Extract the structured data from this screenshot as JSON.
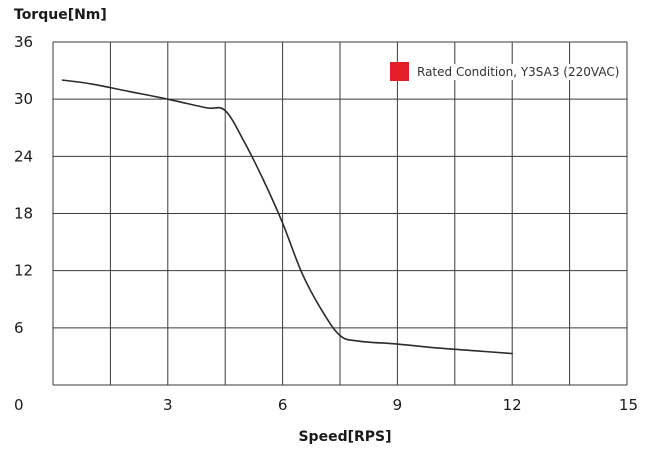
{
  "chart_data": {
    "type": "line",
    "title": "",
    "xlabel": "Speed[RPS]",
    "ylabel": "Torque[Nm]",
    "xlim": [
      0,
      15
    ],
    "ylim": [
      0,
      36
    ],
    "x_ticks": [
      0,
      3,
      6,
      9,
      12,
      15
    ],
    "y_ticks": [
      6,
      12,
      18,
      24,
      30,
      36
    ],
    "grid": true,
    "legend_position": "top-right",
    "series": [
      {
        "name": "Rated Condition, Y3SA3 (220VAC)",
        "color": "#2b2b2b",
        "marker_color": "#e21e26",
        "x": [
          0.25,
          1.0,
          2.0,
          3.0,
          4.0,
          4.5,
          5.0,
          5.5,
          6.0,
          6.5,
          7.0,
          7.5,
          8.0,
          9.0,
          10.0,
          11.0,
          12.0
        ],
        "y": [
          32.0,
          31.6,
          30.8,
          30.0,
          29.1,
          28.8,
          25.5,
          21.5,
          17.0,
          11.8,
          8.0,
          5.2,
          4.6,
          4.3,
          3.9,
          3.6,
          3.3
        ]
      }
    ]
  }
}
